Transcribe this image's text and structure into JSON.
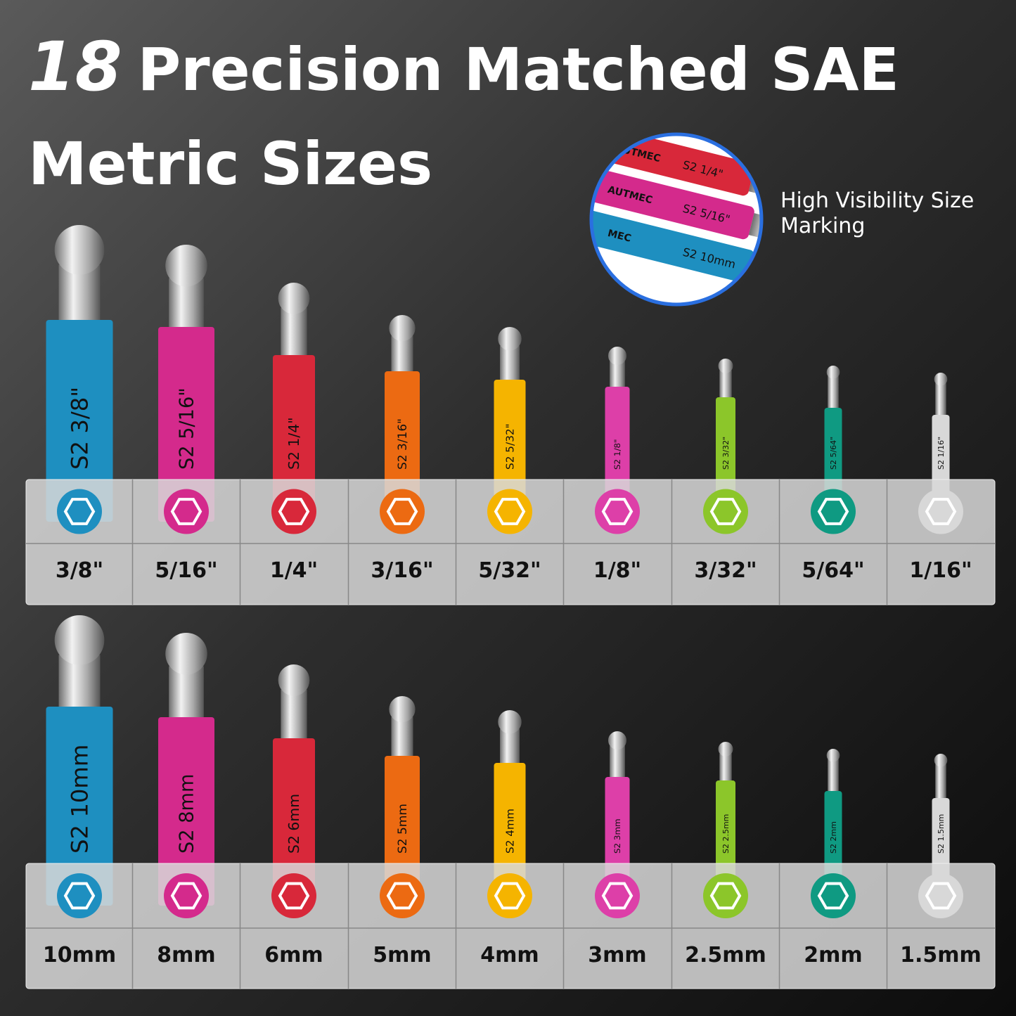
{
  "title": {
    "number": "18",
    "line1": "Precision Matched SAE",
    "line2": "Metric Sizes"
  },
  "callout": "High Visibility Size Marking",
  "inset": [
    {
      "brand": "HAUTMEC",
      "marking": "S2  1/4\"",
      "color": "#d8283a"
    },
    {
      "brand": "AUTMEC",
      "marking": "S2  5/16\"",
      "color": "#d42a8c"
    },
    {
      "brand": "MEC",
      "marking": "S2  10mm",
      "color": "#1e8fc0"
    }
  ],
  "sae": {
    "sizes": [
      "3/8\"",
      "5/16\"",
      "1/4\"",
      "3/16\"",
      "5/32\"",
      "1/8\"",
      "3/32\"",
      "5/64\"",
      "1/16\""
    ],
    "markings": [
      "S2  3/8\"",
      "S2  5/16\"",
      "S2  1/4\"",
      "S2   3/16\"",
      "S2  5/32\"",
      "S2  1/8\"",
      "S2  3/32\"",
      "S2  5/64\"",
      "S2  1/16\""
    ]
  },
  "metric": {
    "sizes": [
      "10mm",
      "8mm",
      "6mm",
      "5mm",
      "4mm",
      "3mm",
      "2.5mm",
      "2mm",
      "1.5mm"
    ],
    "markings": [
      "S2 10mm",
      "S2  8mm",
      "S2  6mm",
      "S2  5mm",
      "S2  4mm",
      "S2  3mm",
      "S2  2.5mm",
      "S2  2mm",
      "S2  1.5mm"
    ]
  },
  "colors": [
    "#1e8fc0",
    "#d42a8c",
    "#d8283a",
    "#ec6a12",
    "#f5b400",
    "#dd3fa8",
    "#8cc62a",
    "#0f9a82",
    "#d8d8d8"
  ]
}
